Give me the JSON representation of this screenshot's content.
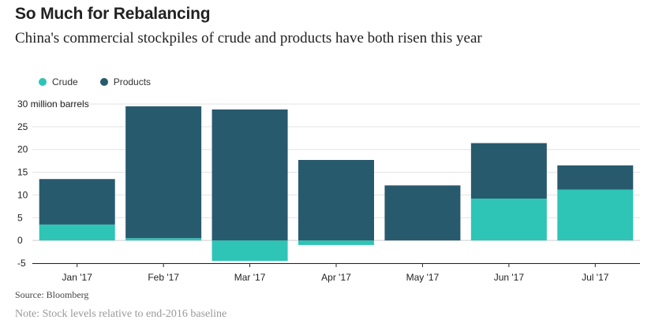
{
  "header": {
    "title": "So Much for Rebalancing",
    "subtitle": "China's commercial stockpiles of crude and products have both risen this year"
  },
  "footer": {
    "source": "Source: Bloomberg",
    "note": "Note: Stock levels relative to end-2016 baseline"
  },
  "colors": {
    "crude": "#2ec4b6",
    "products": "#285a6e",
    "grid": "#e3e3e3",
    "axis": "#222222"
  },
  "chart_data": {
    "type": "bar",
    "stacked": true,
    "categories": [
      "Jan '17",
      "Feb '17",
      "Mar '17",
      "Apr '17",
      "May '17",
      "Jun '17",
      "Jul '17"
    ],
    "series": [
      {
        "name": "Crude",
        "values": [
          3.5,
          0.5,
          -4.5,
          -1.0,
          0.0,
          9.2,
          11.2
        ]
      },
      {
        "name": "Products",
        "values": [
          10.0,
          29.0,
          28.8,
          17.7,
          12.1,
          12.2,
          5.3
        ]
      }
    ],
    "ylim": [
      -5,
      30
    ],
    "yticks": [
      -5,
      0,
      5,
      10,
      15,
      20,
      25,
      30
    ],
    "ytick_labels": [
      "-5",
      "0",
      "5",
      "10",
      "15",
      "20",
      "25",
      "30 million barrels"
    ],
    "xlabel": "",
    "ylabel": "",
    "grid": true,
    "legend_position": "top-left"
  }
}
